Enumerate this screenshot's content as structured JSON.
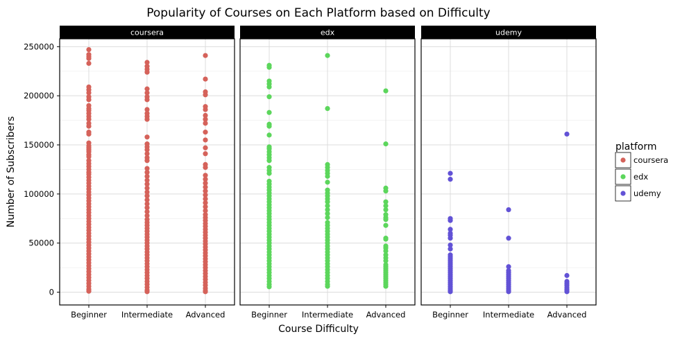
{
  "chart_data": {
    "type": "scatter",
    "title": "Popularity of Courses on Each Platform based on Difficulty",
    "xlabel": "Course Difficulty",
    "ylabel": "Number of Subscribers",
    "categories": [
      "Beginner",
      "Intermediate",
      "Advanced"
    ],
    "ylim": [
      -13000,
      258000
    ],
    "yticks": [
      0,
      50000,
      100000,
      150000,
      200000,
      250000
    ],
    "ytick_labels": [
      "0",
      "50000",
      "100000",
      "150000",
      "200000",
      "250000"
    ],
    "grid": true,
    "legend": {
      "title": "platform",
      "placement": "right",
      "entries": [
        {
          "label": "coursera",
          "color": "#d5625a"
        },
        {
          "label": "edx",
          "color": "#5cd65c"
        },
        {
          "label": "udemy",
          "color": "#6252d6"
        }
      ]
    },
    "panels": [
      {
        "name": "coursera",
        "color": "#d5625a",
        "points": {
          "Beginner": [
            247000,
            242000,
            240000,
            238000,
            233000,
            209000,
            206000,
            203000,
            199000,
            196000,
            190000,
            187000,
            185000,
            182000,
            179000,
            176000,
            172000,
            169000,
            163000,
            161000,
            152000,
            149000,
            147000,
            145000,
            143000,
            140000,
            138000,
            134000,
            131000,
            128000,
            125000,
            122000,
            120000,
            117000,
            114000,
            111000,
            108000,
            105000,
            102000,
            99000,
            96000,
            93000,
            90000,
            87000,
            84000,
            81000,
            78000,
            75000,
            72000,
            69000,
            66000,
            63000,
            60000,
            57000,
            54000,
            51000,
            48000,
            45000,
            42000,
            39000,
            36000,
            33000,
            30000,
            27000,
            24000,
            21000,
            18000,
            15000,
            12000,
            9000,
            6000,
            3000,
            1000
          ],
          "Intermediate": [
            234000,
            230000,
            227000,
            224000,
            207000,
            203000,
            199000,
            196000,
            186000,
            182000,
            179000,
            176000,
            158000,
            151000,
            148000,
            145000,
            141000,
            137000,
            134000,
            126000,
            122000,
            118000,
            114000,
            110000,
            106000,
            102000,
            98000,
            94000,
            90000,
            86000,
            82000,
            78000,
            74000,
            71000,
            68000,
            65000,
            62000,
            59000,
            56000,
            53000,
            50000,
            47000,
            44000,
            41000,
            38000,
            35000,
            32000,
            29000,
            26000,
            23000,
            20000,
            17000,
            14000,
            11000,
            8000,
            5000,
            2000,
            500
          ],
          "Advanced": [
            241000,
            217000,
            204000,
            201000,
            189000,
            186000,
            180000,
            176000,
            172000,
            163000,
            155000,
            147000,
            141000,
            130000,
            127000,
            119000,
            115000,
            111000,
            107000,
            103000,
            99000,
            95000,
            91000,
            87000,
            83000,
            79000,
            76000,
            73000,
            70000,
            67000,
            64000,
            61000,
            58000,
            55000,
            52000,
            49000,
            46000,
            43000,
            40000,
            37000,
            34000,
            31000,
            28000,
            25000,
            22000,
            19000,
            16000,
            13000,
            10000,
            7000,
            4000,
            1500,
            500
          ]
        }
      },
      {
        "name": "edx",
        "color": "#5cd65c",
        "points": {
          "Beginner": [
            231000,
            229000,
            215000,
            212000,
            209000,
            199000,
            183000,
            171000,
            169000,
            160000,
            148000,
            146000,
            143000,
            140000,
            137000,
            134000,
            127000,
            124000,
            121000,
            113000,
            110000,
            107000,
            104000,
            101000,
            98000,
            95000,
            92000,
            89000,
            86000,
            83000,
            80000,
            77000,
            74000,
            71000,
            68000,
            65000,
            62000,
            59000,
            56000,
            53000,
            50000,
            47000,
            44000,
            41000,
            38000,
            35000,
            32000,
            29000,
            26000,
            23000,
            20000,
            17000,
            14000,
            11000,
            8000,
            5500
          ],
          "Intermediate": [
            241000,
            187000,
            130000,
            127000,
            124000,
            121000,
            118000,
            112000,
            104000,
            101000,
            98000,
            95000,
            92000,
            88000,
            84000,
            80000,
            76000,
            71000,
            68000,
            65000,
            62000,
            59000,
            56000,
            53000,
            50000,
            47000,
            44000,
            41000,
            38000,
            35000,
            32000,
            29000,
            26000,
            23000,
            20000,
            17000,
            14000,
            11000,
            8000,
            6000
          ],
          "Advanced": [
            205000,
            151000,
            106000,
            103000,
            92000,
            88000,
            84000,
            79000,
            76000,
            74000,
            68000,
            55000,
            54000,
            47000,
            45000,
            42000,
            38000,
            35000,
            32000,
            28000,
            26000,
            24000,
            22000,
            20000,
            18000,
            16000,
            14000,
            12000,
            10000,
            8000,
            6000
          ]
        }
      },
      {
        "name": "udemy",
        "color": "#6252d6",
        "points": {
          "Beginner": [
            121000,
            115000,
            75000,
            73000,
            64000,
            60000,
            58000,
            55000,
            48000,
            44000,
            38000,
            36000,
            34000,
            32000,
            30000,
            28000,
            26000,
            24000,
            22000,
            20000,
            18000,
            16000,
            14000,
            12000,
            10000,
            8000,
            6000,
            4000,
            2000,
            500
          ],
          "Intermediate": [
            84000,
            55000,
            26000,
            22000,
            20000,
            18000,
            16000,
            14000,
            12000,
            10000,
            8000,
            6000,
            4000,
            2000,
            500
          ],
          "Advanced": [
            161000,
            17000,
            11000,
            9000,
            7000,
            5000,
            3000,
            1500,
            500
          ]
        }
      }
    ]
  }
}
